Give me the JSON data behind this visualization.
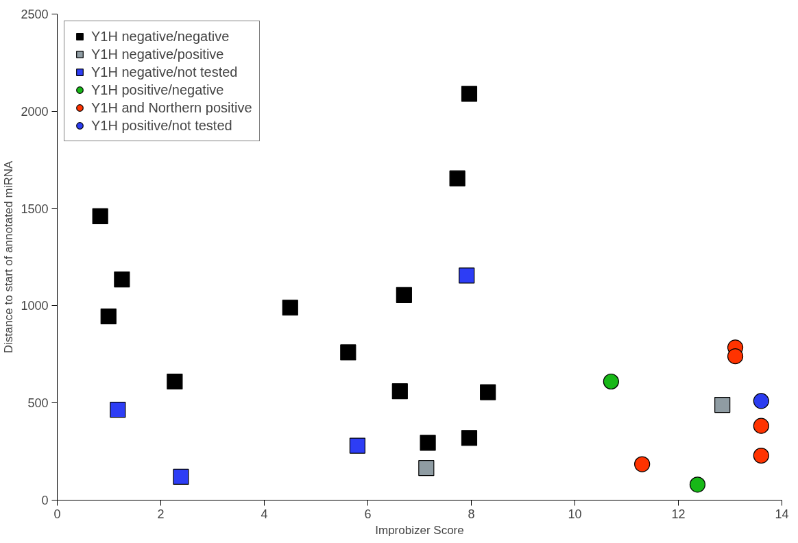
{
  "chart_data": {
    "type": "scatter",
    "xlabel": "Improbizer Score",
    "ylabel": "Distance to start of annotated miRNA",
    "xlim": [
      0,
      14
    ],
    "xticks": [
      0,
      2,
      4,
      6,
      8,
      10,
      12,
      14
    ],
    "ylim": [
      0,
      2500
    ],
    "yticks": [
      0,
      500,
      1000,
      1500,
      2000,
      2500
    ],
    "grid": false,
    "legend": "top left",
    "series": [
      {
        "name": "Y1H negative/negative",
        "color": "#000000",
        "marker": "square",
        "x": [
          0.83,
          1.25,
          0.99,
          2.27,
          4.5,
          5.62,
          6.62,
          6.7,
          7.16,
          7.73,
          7.96,
          7.96,
          8.32
        ],
        "values": [
          1460,
          1135,
          945,
          610,
          990,
          760,
          560,
          1055,
          295,
          1655,
          2090,
          320,
          555
        ]
      },
      {
        "name": "Y1H negative/positive",
        "color": "#8f9ca3",
        "marker": "square",
        "x": [
          7.13,
          12.85
        ],
        "values": [
          165,
          490
        ]
      },
      {
        "name": "Y1H negative/not tested",
        "color": "#2d3df5",
        "marker": "square",
        "x": [
          1.17,
          2.39,
          5.8,
          7.91
        ],
        "values": [
          465,
          120,
          280,
          1155
        ]
      },
      {
        "name": "Y1H positive/negative",
        "color": "#17b817",
        "marker": "circle",
        "x": [
          10.7,
          12.37
        ],
        "values": [
          610,
          80
        ]
      },
      {
        "name": "Y1H and Northern positive",
        "color": "#ff3300",
        "marker": "circle",
        "x": [
          11.3,
          13.1,
          13.1,
          13.6,
          13.6
        ],
        "values": [
          185,
          785,
          740,
          382,
          229
        ]
      },
      {
        "name": "Y1H positive/not tested",
        "color": "#2b3cf0",
        "marker": "circle",
        "x": [
          13.6
        ],
        "values": [
          510
        ]
      }
    ]
  }
}
